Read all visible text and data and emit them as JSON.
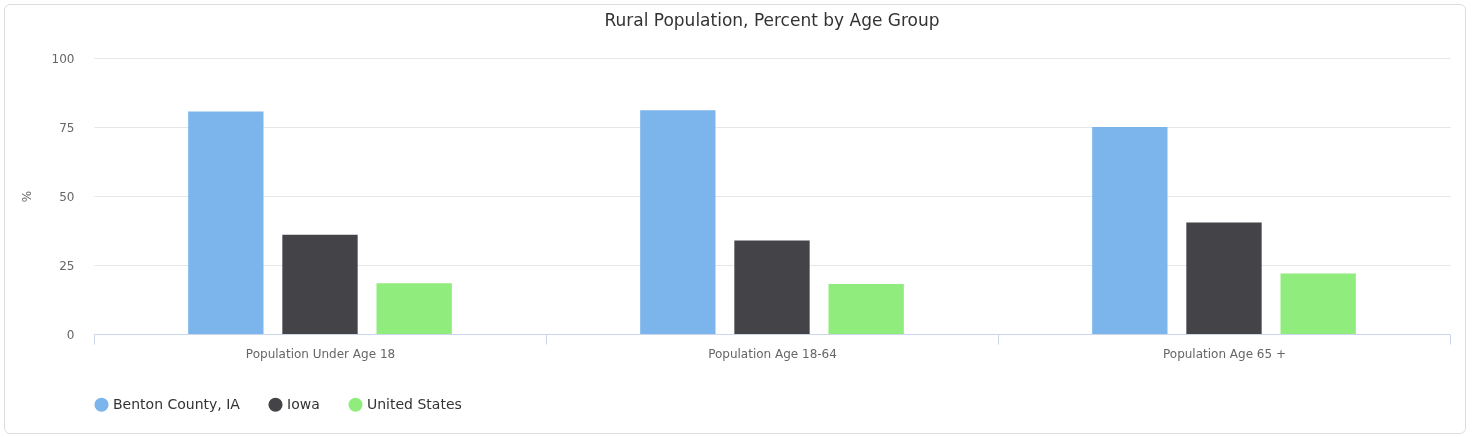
{
  "chart_data": {
    "type": "bar",
    "title": "Rural Population, Percent by Age Group",
    "ylabel": "%",
    "categories": [
      "Population Under Age 18",
      "Population Age 18-64",
      "Population Age 65 +"
    ],
    "series": [
      {
        "name": "Benton County, IA",
        "color": "#7cb5ec",
        "values": [
          80.6,
          81.1,
          75.0
        ]
      },
      {
        "name": "Iowa",
        "color": "#434348",
        "values": [
          36.0,
          33.9,
          40.4
        ]
      },
      {
        "name": "United States",
        "color": "#90ed7d",
        "values": [
          18.4,
          18.1,
          21.9
        ]
      }
    ],
    "ylim": [
      0,
      100
    ],
    "yticks": [
      0,
      25,
      50,
      75,
      100
    ],
    "grid": "y",
    "legend": "bottom"
  }
}
